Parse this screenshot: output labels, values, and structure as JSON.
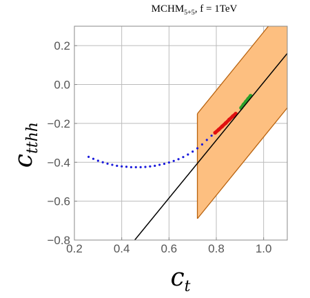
{
  "chart_data": {
    "type": "scatter",
    "title_main": "MCHM",
    "title_sub": "5+5",
    "title_rest": ",  f = 1TeV",
    "xlabel_main": "c",
    "xlabel_sub": "t",
    "ylabel_main": "c",
    "ylabel_sub": "tthh",
    "xlim": [
      0.2,
      1.1
    ],
    "ylim": [
      -0.8,
      0.3
    ],
    "x_ticks": [
      0.2,
      0.4,
      0.6,
      0.8,
      1.0
    ],
    "x_tick_labels": [
      "0.2",
      "0.4",
      "0.6",
      "0.8",
      "1.0"
    ],
    "y_ticks": [
      -0.8,
      -0.6,
      -0.4,
      -0.2,
      0.0,
      0.2
    ],
    "y_tick_labels": [
      "−0.8",
      "−0.6",
      "−0.4",
      "−0.2",
      "0.0",
      "0.2"
    ],
    "grid": true,
    "colors": {
      "band_fill": "#fdbf80",
      "band_edge": "#b8620e",
      "line": "#000000",
      "blue": "#1a1adc",
      "red": "#e01010",
      "green": "#2ca02c",
      "grid": "#bbbbbb",
      "frame": "#888888"
    },
    "band": {
      "x_range": [
        0.72,
        1.1
      ],
      "lower_edge": [
        [
          0.72,
          -0.69
        ],
        [
          1.1,
          -0.12
        ]
      ],
      "upper_edge": [
        [
          0.72,
          -0.15
        ],
        [
          1.1,
          0.42
        ]
      ]
    },
    "line": {
      "points": [
        [
          0.455,
          -0.8
        ],
        [
          1.1,
          0.16
        ]
      ]
    },
    "series": [
      {
        "color": "blue",
        "points": [
          [
            0.26,
            -0.372
          ],
          [
            0.28,
            -0.382
          ],
          [
            0.3,
            -0.392
          ],
          [
            0.32,
            -0.4
          ],
          [
            0.34,
            -0.407
          ],
          [
            0.36,
            -0.413
          ],
          [
            0.38,
            -0.418
          ],
          [
            0.4,
            -0.421
          ],
          [
            0.42,
            -0.423
          ],
          [
            0.44,
            -0.425
          ],
          [
            0.46,
            -0.425
          ],
          [
            0.48,
            -0.425
          ],
          [
            0.5,
            -0.424
          ],
          [
            0.52,
            -0.421
          ],
          [
            0.54,
            -0.418
          ],
          [
            0.56,
            -0.413
          ],
          [
            0.58,
            -0.408
          ],
          [
            0.6,
            -0.401
          ],
          [
            0.62,
            -0.393
          ],
          [
            0.64,
            -0.384
          ],
          [
            0.66,
            -0.373
          ],
          [
            0.68,
            -0.36
          ],
          [
            0.7,
            -0.345
          ],
          [
            0.72,
            -0.328
          ],
          [
            0.74,
            -0.308
          ],
          [
            0.76,
            -0.285
          ],
          [
            0.78,
            -0.263
          ],
          [
            0.795,
            -0.248
          ]
        ]
      },
      {
        "color": "red",
        "points": [
          [
            0.795,
            -0.248
          ],
          [
            0.81,
            -0.232
          ],
          [
            0.825,
            -0.215
          ],
          [
            0.84,
            -0.198
          ],
          [
            0.855,
            -0.18
          ],
          [
            0.87,
            -0.163
          ],
          [
            0.882,
            -0.15
          ]
        ]
      },
      {
        "color": "green",
        "points": [
          [
            0.905,
            -0.12
          ],
          [
            0.915,
            -0.103
          ],
          [
            0.925,
            -0.088
          ],
          [
            0.935,
            -0.073
          ],
          [
            0.945,
            -0.058
          ]
        ]
      }
    ]
  }
}
